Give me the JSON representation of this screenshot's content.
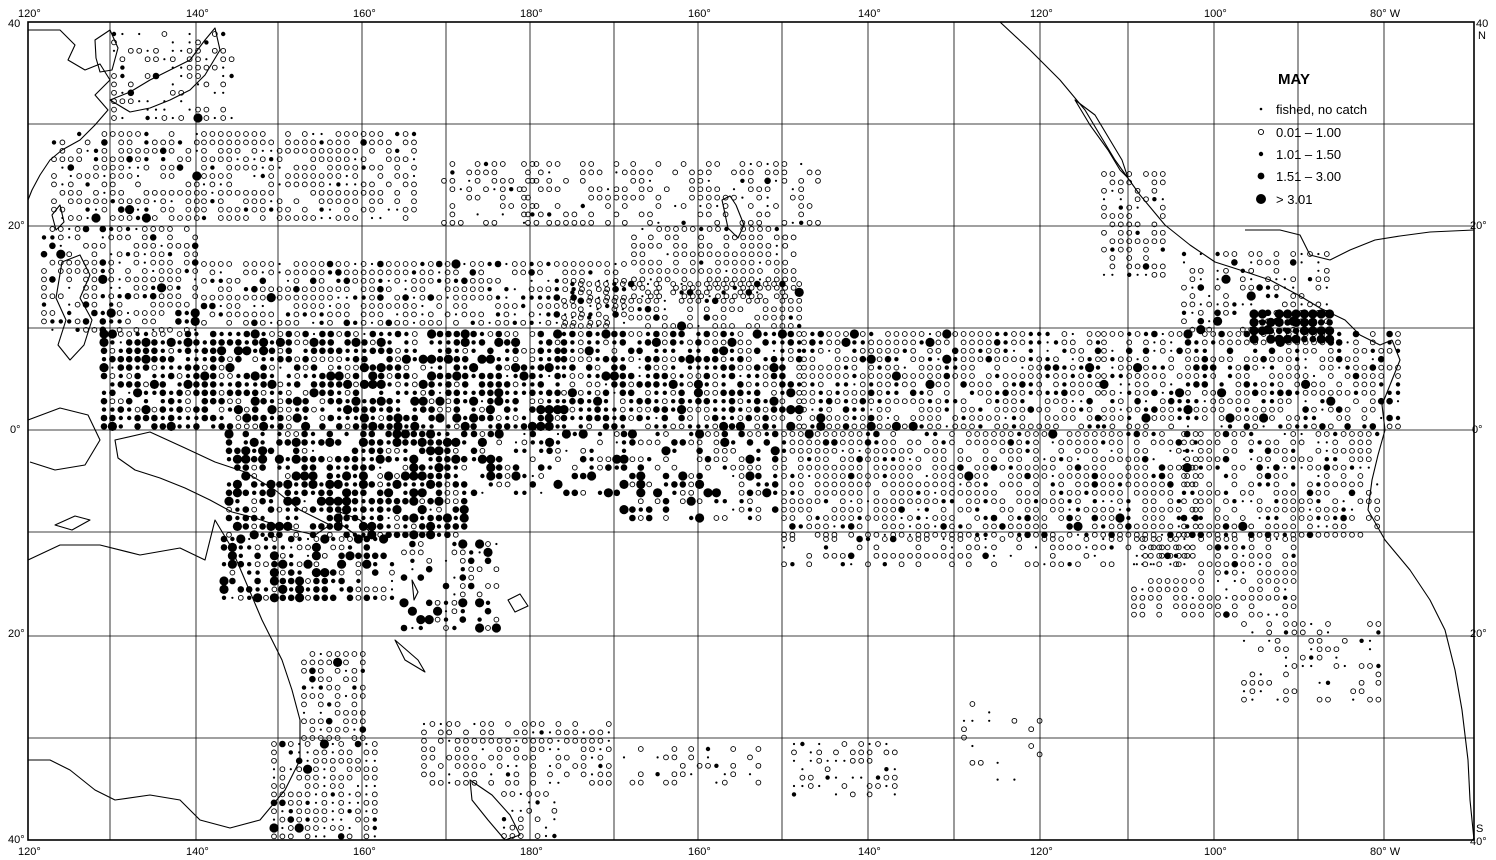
{
  "map": {
    "title": "MAY",
    "top_labels": [
      "120°",
      "140°",
      "160°",
      "180°",
      "160°",
      "140°",
      "120°",
      "100°",
      "80° W"
    ],
    "bottom_labels": [
      "120°",
      "140°",
      "160°",
      "180°",
      "160°",
      "140°",
      "120°",
      "100°",
      "80° W"
    ],
    "left_labels": [
      "40",
      "20°",
      "0°",
      "20°",
      "40°"
    ],
    "right_labels": [
      "40",
      "N",
      "20°",
      "0°",
      "20°",
      "S",
      "40°"
    ],
    "legend": [
      {
        "symbol": "dot-tiny",
        "label": "fished, no catch"
      },
      {
        "symbol": "open-circle",
        "label": "0.01 – 1.00"
      },
      {
        "symbol": "dot-small",
        "label": "1.01 – 1.50"
      },
      {
        "symbol": "dot-medium",
        "label": "1.51 – 3.00"
      },
      {
        "symbol": "dot-large",
        "label": "> 3.01"
      }
    ]
  }
}
